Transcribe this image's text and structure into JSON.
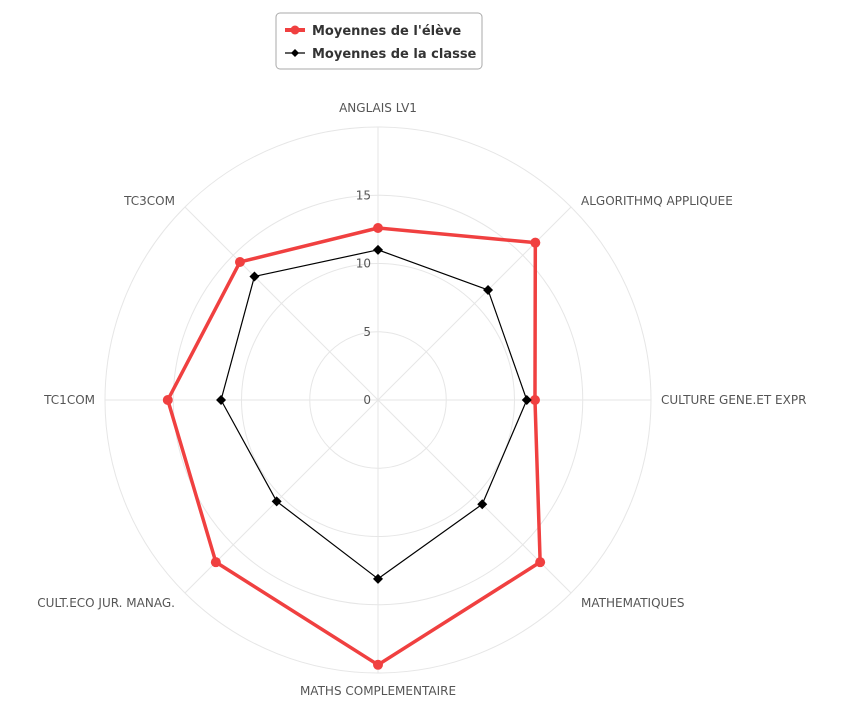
{
  "chart_data": {
    "type": "radar",
    "title": "",
    "categories": [
      "ANGLAIS LV1",
      "ALGORITHMQ APPLIQUEE",
      "CULTURE GENE.ET EXPR",
      "MATHEMATIQUES",
      "MATHS COMPLEMENTAIRE",
      "CULT.ECO JUR. MANAG.",
      "TC1COM",
      "TC3COM"
    ],
    "series": [
      {
        "name": "Moyennes de l'élève",
        "color": "#f04040",
        "values": [
          12.6,
          16.3,
          11.5,
          16.8,
          19.4,
          16.8,
          15.4,
          14.3
        ]
      },
      {
        "name": "Moyennes de la classe",
        "color": "#000000",
        "values": [
          11.0,
          11.4,
          10.9,
          10.8,
          13.1,
          10.5,
          11.5,
          12.8
        ]
      }
    ],
    "rlim": [
      0,
      20
    ],
    "ticks": [
      0,
      5,
      10,
      15
    ],
    "grid": true,
    "legend_position": "top-center"
  }
}
